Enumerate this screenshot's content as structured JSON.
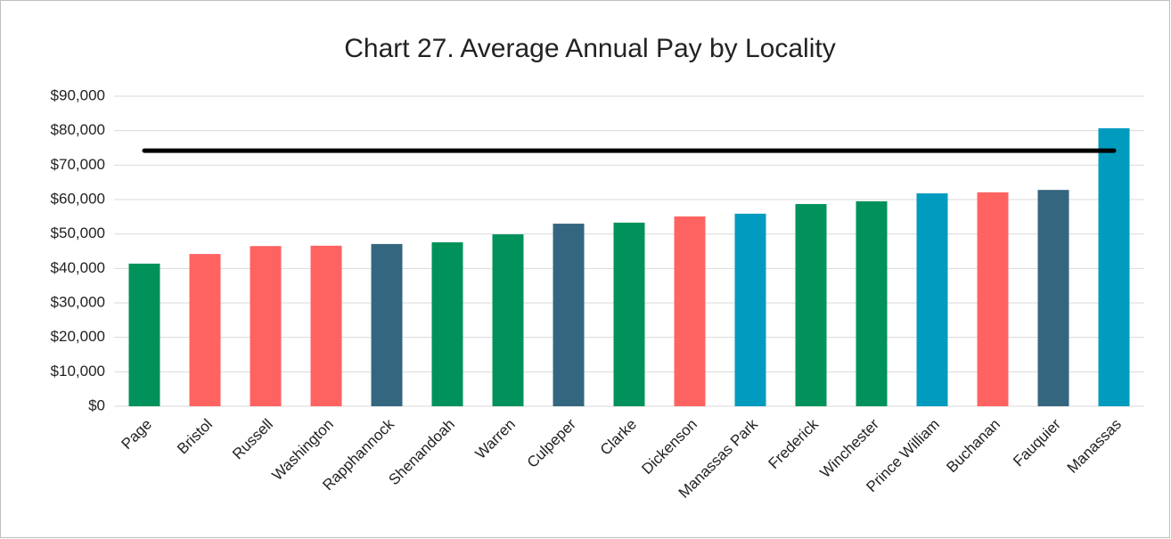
{
  "chart_data": {
    "type": "bar",
    "title": "Chart 27. Average Annual Pay by Locality",
    "categories": [
      "Page",
      "Bristol",
      "Russell",
      "Washington",
      "Rapphannock",
      "Shenandoah",
      "Warren",
      "Culpeper",
      "Clarke",
      "Dickenson",
      "Manassas Park",
      "Frederick",
      "Winchester",
      "Prince William",
      "Buchanan",
      "Fauquier",
      "Manassas"
    ],
    "values": [
      41400,
      44200,
      46500,
      46600,
      47100,
      47600,
      49900,
      53000,
      53300,
      55100,
      55900,
      58700,
      59500,
      61800,
      62100,
      62800,
      80700
    ],
    "colors": [
      "#00925a",
      "#ff6361",
      "#ff6361",
      "#ff6361",
      "#35667f",
      "#00925a",
      "#00925a",
      "#35667f",
      "#00925a",
      "#ff6361",
      "#009bbf",
      "#00925a",
      "#00925a",
      "#009bbf",
      "#ff6361",
      "#35667f",
      "#009bbf"
    ],
    "reference_line": 74200,
    "reference_color": "#000000",
    "ylim": [
      0,
      90000
    ],
    "yticks": [
      {
        "value": 0,
        "label": "$0"
      },
      {
        "value": 10000,
        "label": "$10,000"
      },
      {
        "value": 20000,
        "label": "$20,000"
      },
      {
        "value": 30000,
        "label": "$30,000"
      },
      {
        "value": 40000,
        "label": "$40,000"
      },
      {
        "value": 50000,
        "label": "$50,000"
      },
      {
        "value": 60000,
        "label": "$60,000"
      },
      {
        "value": 70000,
        "label": "$70,000"
      },
      {
        "value": 80000,
        "label": "$80,000"
      },
      {
        "value": 90000,
        "label": "$90,000"
      }
    ],
    "grid": true
  }
}
